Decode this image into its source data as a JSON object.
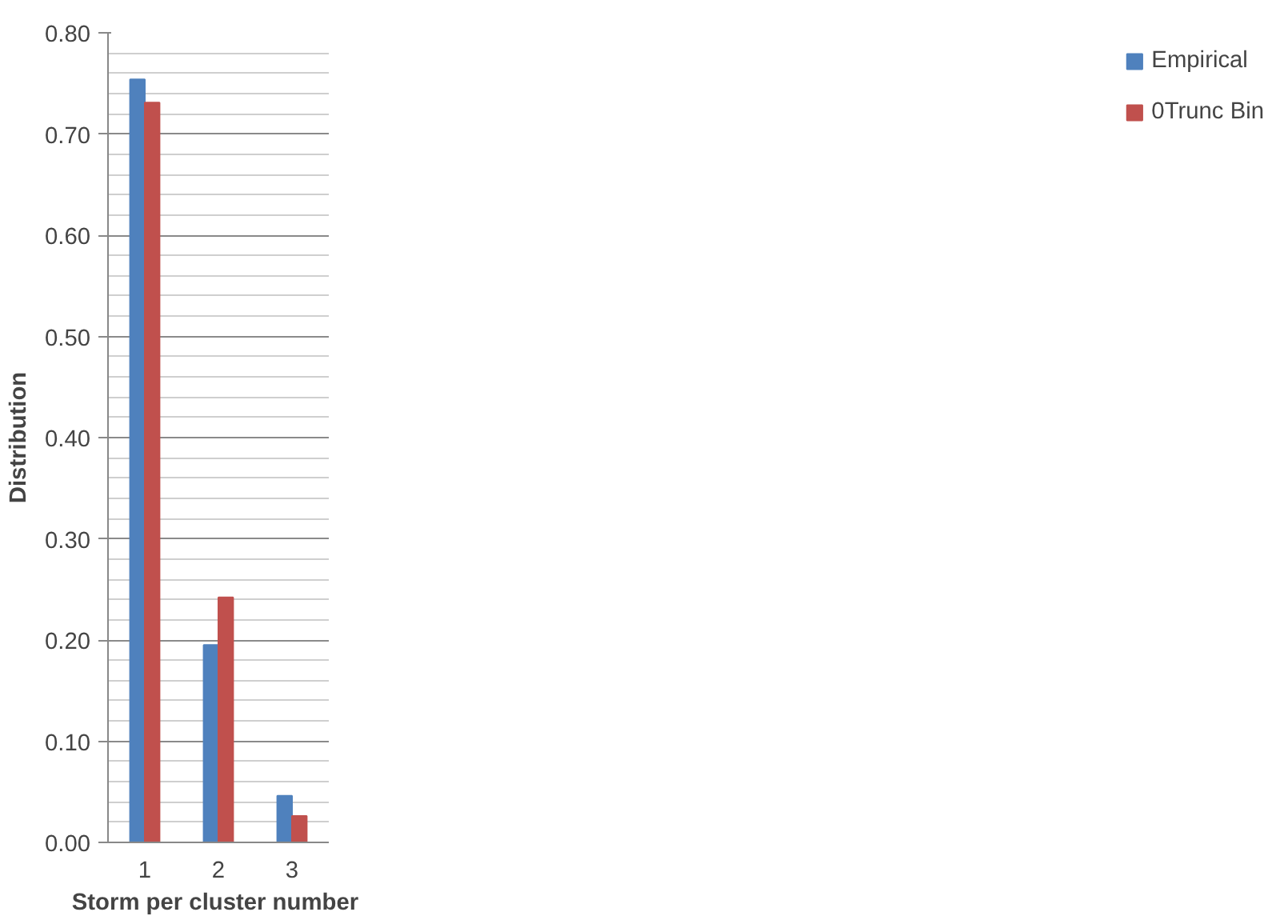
{
  "chart_data": {
    "type": "bar",
    "xlabel": "Storm per cluster  number",
    "ylabel": "Distribution",
    "categories": [
      "1",
      "2",
      "3"
    ],
    "series": [
      {
        "name": "Empirical",
        "color": "#4f81bd",
        "values": [
          0.754,
          0.195,
          0.046
        ]
      },
      {
        "name": "0Trunc Bin",
        "color": "#c0504d",
        "values": [
          0.731,
          0.242,
          0.026
        ]
      }
    ],
    "ylim": [
      0,
      0.8
    ],
    "yticks": [
      {
        "value": 0,
        "label": "0.00"
      },
      {
        "value": 0.1,
        "label": "0.10"
      },
      {
        "value": 0.2,
        "label": "0.20"
      },
      {
        "value": 0.3,
        "label": "0.30"
      },
      {
        "value": 0.4,
        "label": "0.40"
      },
      {
        "value": 0.5,
        "label": "0.50"
      },
      {
        "value": 0.6,
        "label": "0.60"
      },
      {
        "value": 0.7,
        "label": "0.70"
      },
      {
        "value": 0.8,
        "label": "0.80"
      }
    ],
    "grid": "y",
    "legend": "right"
  }
}
